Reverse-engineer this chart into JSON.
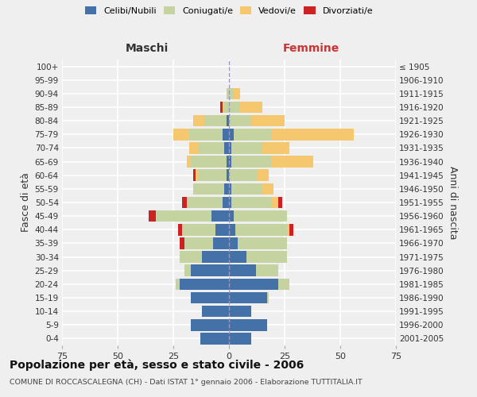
{
  "age_groups": [
    "0-4",
    "5-9",
    "10-14",
    "15-19",
    "20-24",
    "25-29",
    "30-34",
    "35-39",
    "40-44",
    "45-49",
    "50-54",
    "55-59",
    "60-64",
    "65-69",
    "70-74",
    "75-79",
    "80-84",
    "85-89",
    "90-94",
    "95-99",
    "100+"
  ],
  "birth_years": [
    "2001-2005",
    "1996-2000",
    "1991-1995",
    "1986-1990",
    "1981-1985",
    "1976-1980",
    "1971-1975",
    "1966-1970",
    "1961-1965",
    "1956-1960",
    "1951-1955",
    "1946-1950",
    "1941-1945",
    "1936-1940",
    "1931-1935",
    "1926-1930",
    "1921-1925",
    "1916-1920",
    "1911-1915",
    "1906-1910",
    "≤ 1905"
  ],
  "male": {
    "celibi": [
      13,
      17,
      12,
      17,
      22,
      17,
      12,
      7,
      6,
      8,
      3,
      2,
      1,
      1,
      2,
      3,
      1,
      0,
      0,
      0,
      0
    ],
    "coniugati": [
      0,
      0,
      0,
      0,
      2,
      3,
      10,
      13,
      15,
      25,
      16,
      14,
      13,
      16,
      12,
      15,
      10,
      2,
      1,
      0,
      0
    ],
    "vedovi": [
      0,
      0,
      0,
      0,
      0,
      0,
      0,
      0,
      0,
      0,
      0,
      0,
      1,
      2,
      4,
      7,
      5,
      1,
      0,
      0,
      0
    ],
    "divorziati": [
      0,
      0,
      0,
      0,
      0,
      0,
      0,
      2,
      2,
      3,
      2,
      0,
      1,
      0,
      0,
      0,
      0,
      1,
      0,
      0,
      0
    ]
  },
  "female": {
    "nubili": [
      10,
      17,
      10,
      17,
      22,
      12,
      8,
      4,
      3,
      2,
      1,
      1,
      0,
      1,
      1,
      2,
      0,
      0,
      0,
      0,
      0
    ],
    "coniugate": [
      0,
      0,
      0,
      1,
      5,
      10,
      18,
      22,
      23,
      24,
      18,
      14,
      13,
      18,
      14,
      17,
      10,
      5,
      2,
      0,
      0
    ],
    "vedove": [
      0,
      0,
      0,
      0,
      0,
      0,
      0,
      0,
      1,
      0,
      3,
      5,
      5,
      19,
      12,
      37,
      15,
      10,
      3,
      0,
      0
    ],
    "divorziate": [
      0,
      0,
      0,
      0,
      0,
      0,
      0,
      0,
      2,
      0,
      2,
      0,
      0,
      0,
      0,
      0,
      0,
      0,
      0,
      0,
      0
    ]
  },
  "colors": {
    "celibi": "#4472a8",
    "coniugati": "#c5d3a0",
    "vedovi": "#f5c76e",
    "divorziati": "#cc2222"
  },
  "xlim": 75,
  "title": "Popolazione per età, sesso e stato civile - 2006",
  "subtitle": "COMUNE DI ROCCASCALEGNA (CH) - Dati ISTAT 1° gennaio 2006 - Elaborazione TUTTITALIA.IT",
  "ylabel_left": "Fasce di età",
  "ylabel_right": "Anni di nascita",
  "label_maschi": "Maschi",
  "label_femmine": "Femmine",
  "bg_color": "#efefef",
  "grid_color": "#ffffff",
  "legend_labels": [
    "Celibi/Nubili",
    "Coniugati/e",
    "Vedovi/e",
    "Divorziati/e"
  ]
}
